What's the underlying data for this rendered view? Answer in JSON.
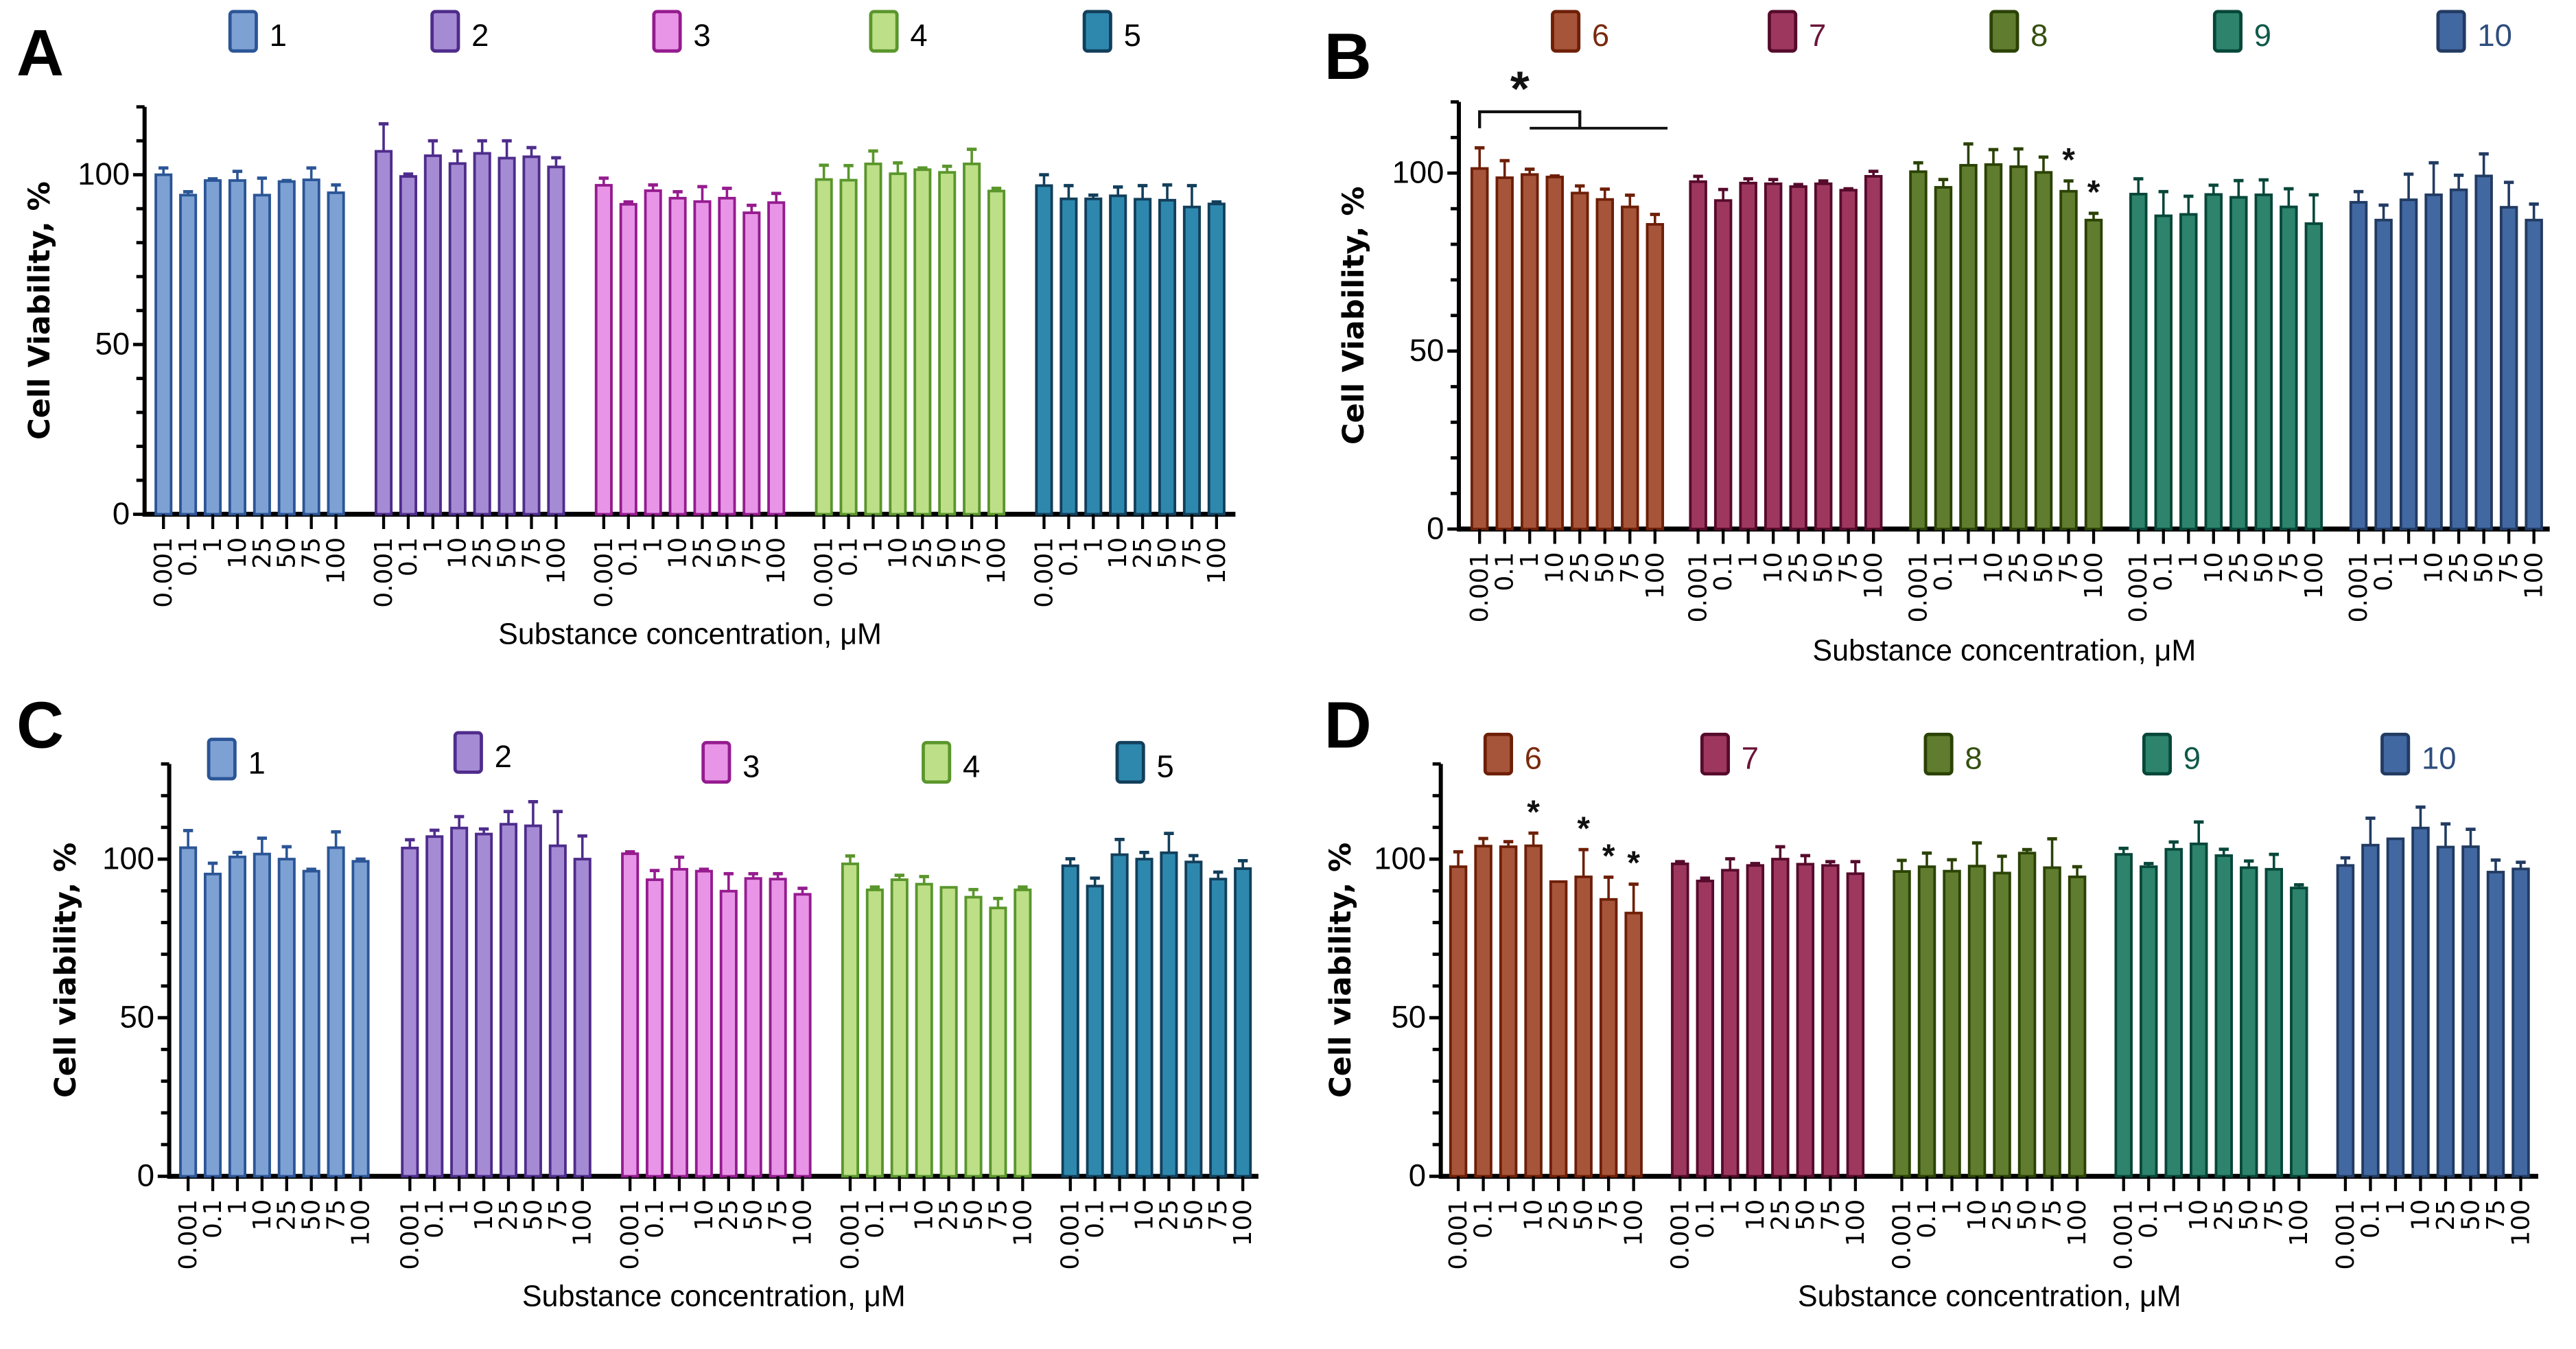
{
  "chart_data": [
    {
      "id": "A",
      "type": "bar",
      "panel_label": "A",
      "title": "",
      "xlabel": "Substance concentration, μM",
      "ylabel": "Cell Viability, %",
      "ylim": [
        0,
        120
      ],
      "yticks": [
        0,
        50,
        100
      ],
      "yminor_step": 10,
      "grid": false,
      "legend_position": "top",
      "categories": [
        "0.001",
        "0.1",
        "1",
        "10",
        "25",
        "50",
        "75",
        "100"
      ],
      "series": [
        {
          "name": "1",
          "fill": "#7ea1d4",
          "stroke": "#2b5596",
          "label_color": "#000000",
          "values": [
            100,
            94,
            98.3,
            98.3,
            94,
            98,
            98.5,
            94.7
          ],
          "err_upper": [
            102,
            95,
            98.8,
            101,
            99,
            98.3,
            102,
            97
          ]
        },
        {
          "name": "2",
          "fill": "#a58bd4",
          "stroke": "#4e2c8c",
          "label_color": "#000000",
          "values": [
            106.9,
            99.5,
            105.6,
            103.3,
            106.3,
            104.9,
            105.3,
            102.3
          ],
          "err_upper": [
            115,
            100.2,
            110,
            107,
            110,
            110,
            108,
            105
          ]
        },
        {
          "name": "3",
          "fill": "#e895e8",
          "stroke": "#951b8f",
          "label_color": "#000000",
          "values": [
            96.9,
            91.3,
            95.3,
            93.1,
            92.1,
            93.1,
            88.8,
            91.8
          ],
          "err_upper": [
            99,
            92,
            97,
            95,
            96.5,
            96,
            91,
            94.5
          ]
        },
        {
          "name": "4",
          "fill": "#bddf87",
          "stroke": "#5a962c",
          "label_color": "#000000",
          "values": [
            98.6,
            98.4,
            103.2,
            100.3,
            101.5,
            100.7,
            103.2,
            95.2
          ],
          "err_upper": [
            102.8,
            102.7,
            107,
            103.5,
            102,
            102.5,
            107.5,
            96
          ]
        },
        {
          "name": "5",
          "fill": "#2e88ae",
          "stroke": "#123f5b",
          "label_color": "#000000",
          "values": [
            96.8,
            92.9,
            92.9,
            93.8,
            92.8,
            92.5,
            90.5,
            91.4
          ],
          "err_upper": [
            100,
            96.8,
            94,
            96.4,
            96.8,
            97,
            96.8,
            92
          ]
        }
      ],
      "annotations": []
    },
    {
      "id": "B",
      "type": "bar",
      "panel_label": "B",
      "title": "",
      "xlabel": "Substance concentration, μM",
      "ylabel": "Cell Viability, %",
      "ylim": [
        0,
        120
      ],
      "yticks": [
        0,
        50,
        100
      ],
      "yminor_step": 10,
      "grid": false,
      "legend_position": "top",
      "categories": [
        "0.001",
        "0.1",
        "1",
        "10",
        "25",
        "50",
        "75",
        "100"
      ],
      "series": [
        {
          "name": "6",
          "fill": "#a6553a",
          "stroke": "#6e1f07",
          "label_color": "#7a2a0e",
          "values": [
            101.3,
            98.7,
            99.6,
            98.9,
            94.4,
            92.6,
            90.5,
            85.6
          ],
          "err_upper": [
            107.1,
            103.5,
            101.1,
            99.2,
            96.4,
            95.5,
            93.8,
            88.4
          ]
        },
        {
          "name": "7",
          "fill": "#9e375e",
          "stroke": "#560b2c",
          "label_color": "#6b1438",
          "values": [
            97.6,
            92.3,
            97.2,
            97.0,
            96.2,
            97.0,
            95.2,
            99.1
          ],
          "err_upper": [
            99.1,
            95.4,
            98.4,
            98.2,
            96.8,
            97.8,
            95.6,
            100.5
          ]
        },
        {
          "name": "8",
          "fill": "#607c2e",
          "stroke": "#2b4205",
          "label_color": "#34500f",
          "values": [
            100.4,
            96.0,
            102.2,
            102.4,
            101.8,
            100.2,
            94.9,
            86.8
          ],
          "err_upper": [
            102.9,
            98.2,
            108.2,
            106.6,
            106.8,
            104.5,
            97.8,
            88.7
          ]
        },
        {
          "name": "9",
          "fill": "#2d836b",
          "stroke": "#07473a",
          "label_color": "#0f5a49",
          "values": [
            94.1,
            88.0,
            88.4,
            94.0,
            93.2,
            93.9,
            90.5,
            85.8
          ],
          "err_upper": [
            98.4,
            94.8,
            93.5,
            96.6,
            97.9,
            98.1,
            95.6,
            93.9
          ]
        },
        {
          "name": "10",
          "fill": "#4268a2",
          "stroke": "#223b62",
          "label_color": "#2e4d7e",
          "values": [
            91.8,
            86.8,
            92.5,
            93.9,
            95.3,
            99.2,
            90.4,
            86.8
          ],
          "err_upper": [
            94.8,
            91.0,
            99.7,
            102.9,
            99.4,
            105.4,
            97.4,
            91.3
          ]
        }
      ],
      "annotations": [
        {
          "type": "bracket",
          "text": "*",
          "series": "6",
          "from": "0.001",
          "to": "25",
          "span_to": "100"
        },
        {
          "type": "star",
          "text": "*",
          "series": "8",
          "category": "75"
        },
        {
          "type": "star",
          "text": "*",
          "series": "8",
          "category": "100"
        }
      ]
    },
    {
      "id": "C",
      "type": "bar",
      "panel_label": "C",
      "title": "",
      "xlabel": "Substance concentration, μM",
      "ylabel": "Cell viability, %",
      "ylim": [
        0,
        130
      ],
      "yticks": [
        0,
        50,
        100
      ],
      "yminor_step": 10,
      "grid": false,
      "legend_position": "top",
      "categories": [
        "0.001",
        "0.1",
        "1",
        "10",
        "25",
        "50",
        "75",
        "100"
      ],
      "series": [
        {
          "name": "1",
          "fill": "#7ea1d4",
          "stroke": "#2b5596",
          "label_color": "#000000",
          "values": [
            103.6,
            95.3,
            100.7,
            101.6,
            100,
            96.2,
            103.6,
            99.3
          ],
          "err_upper": [
            109,
            98.7,
            102.1,
            106.6,
            103.9,
            96.8,
            108.6,
            100
          ]
        },
        {
          "name": "2",
          "fill": "#a58bd4",
          "stroke": "#4e2c8c",
          "label_color": "#000000",
          "values": [
            103.5,
            107.1,
            109.8,
            107.9,
            111,
            110.5,
            104.2,
            100
          ],
          "err_upper": [
            106.1,
            109.1,
            113.4,
            109.5,
            115,
            118.1,
            115,
            107.3
          ]
        },
        {
          "name": "3",
          "fill": "#e895e8",
          "stroke": "#951b8f",
          "label_color": "#000000",
          "values": [
            101.7,
            93.5,
            96.8,
            96.2,
            89.9,
            93.9,
            93.7,
            88.9
          ],
          "err_upper": [
            102.3,
            96.4,
            100.6,
            96.8,
            95.4,
            95.4,
            95.4,
            90.8
          ]
        },
        {
          "name": "4",
          "fill": "#bddf87",
          "stroke": "#5a962c",
          "label_color": "#000000",
          "values": [
            98.5,
            90.3,
            93.5,
            92.1,
            91.1,
            88.0,
            84.6,
            90.3
          ],
          "err_upper": [
            101,
            91.2,
            94.9,
            94.5,
            91.2,
            90.4,
            87.6,
            91.2
          ]
        },
        {
          "name": "5",
          "fill": "#2e88ae",
          "stroke": "#123f5b",
          "label_color": "#000000",
          "values": [
            97.9,
            91.5,
            101.4,
            100,
            102,
            99.1,
            93.7,
            97
          ],
          "err_upper": [
            100.1,
            94,
            106.2,
            102.1,
            108.1,
            101.1,
            95.9,
            99.5
          ]
        }
      ],
      "annotations": []
    },
    {
      "id": "D",
      "type": "bar",
      "panel_label": "D",
      "title": "",
      "xlabel": "Substance concentration, μM",
      "ylabel": "Cell viability, %",
      "ylim": [
        0,
        130
      ],
      "yticks": [
        0,
        50,
        100
      ],
      "yminor_step": 10,
      "grid": false,
      "legend_position": "top",
      "categories": [
        "0.001",
        "0.1",
        "1",
        "10",
        "25",
        "50",
        "75",
        "100"
      ],
      "series": [
        {
          "name": "6",
          "fill": "#a6553a",
          "stroke": "#6e1f07",
          "label_color": "#7a2a0e",
          "values": [
            97.6,
            104.1,
            103.9,
            104.2,
            92.9,
            94.4,
            87.3,
            83
          ],
          "err_upper": [
            102.3,
            106.5,
            105.5,
            108.2,
            93.1,
            103,
            94.3,
            92.1
          ]
        },
        {
          "name": "7",
          "fill": "#9e375e",
          "stroke": "#560b2c",
          "label_color": "#6b1438",
          "values": [
            98.5,
            93.1,
            96.5,
            98,
            100,
            98.4,
            98,
            95.4
          ],
          "err_upper": [
            99.2,
            94,
            100.1,
            98.6,
            103.9,
            101.1,
            99.2,
            99.2
          ]
        },
        {
          "name": "8",
          "fill": "#607c2e",
          "stroke": "#2b4205",
          "label_color": "#34500f",
          "values": [
            96.1,
            97.6,
            96.2,
            97.8,
            95.6,
            101.9,
            97.3,
            94.4
          ],
          "err_upper": [
            99.6,
            101.9,
            99.8,
            105.1,
            100.9,
            103,
            106.4,
            97.6
          ]
        },
        {
          "name": "9",
          "fill": "#2d836b",
          "stroke": "#07473a",
          "label_color": "#0f5a49",
          "values": [
            101.5,
            97.6,
            103.1,
            104.8,
            101.1,
            97.3,
            96.8,
            90.9
          ],
          "err_upper": [
            103.4,
            98.6,
            105.4,
            111.7,
            103.1,
            99.4,
            101.5,
            91.9
          ]
        },
        {
          "name": "10",
          "fill": "#4268a2",
          "stroke": "#223b62",
          "label_color": "#2e4d7e",
          "values": [
            98,
            104.4,
            106.4,
            109.8,
            103.8,
            103.9,
            95.9,
            96.9
          ],
          "err_upper": [
            100.4,
            112.9,
            106.6,
            116.4,
            111.1,
            109.4,
            99.7,
            99
          ]
        }
      ],
      "annotations": [
        {
          "type": "star",
          "text": "*",
          "series": "6",
          "category": "10"
        },
        {
          "type": "star",
          "text": "*",
          "series": "6",
          "category": "50"
        },
        {
          "type": "star",
          "text": "*",
          "series": "6",
          "category": "75"
        },
        {
          "type": "star",
          "text": "*",
          "series": "6",
          "category": "100"
        }
      ]
    }
  ]
}
